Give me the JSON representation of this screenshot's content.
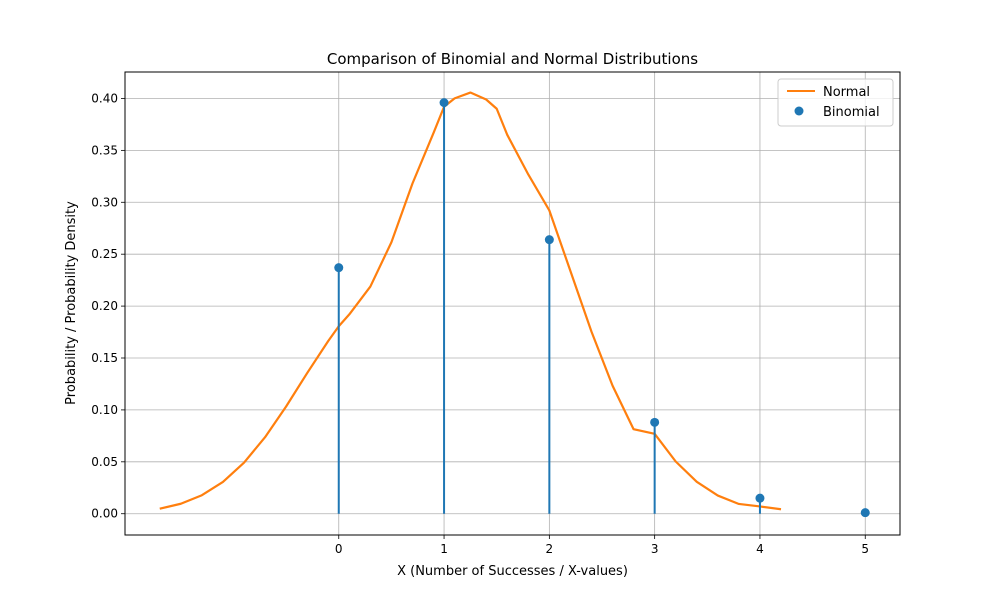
{
  "chart_data": {
    "type": "line",
    "title": "Comparison of Binomial and Normal Distributions",
    "xlabel": "X (Number of Successes / X-values)",
    "ylabel": "Probability / Probability Density",
    "xlim": [
      -2.03,
      5.33
    ],
    "ylim": [
      -0.0205,
      0.4255
    ],
    "x_ticks": [
      0,
      1,
      2,
      3,
      4,
      5
    ],
    "y_ticks": [
      0.0,
      0.05,
      0.1,
      0.15,
      0.2,
      0.25,
      0.3,
      0.35,
      0.4
    ],
    "x_tick_labels": [
      "0",
      "1",
      "2",
      "3",
      "4",
      "5"
    ],
    "y_tick_labels": [
      "0.00",
      "0.05",
      "0.10",
      "0.15",
      "0.20",
      "0.25",
      "0.30",
      "0.35",
      "0.40"
    ],
    "grid": true,
    "legend_position": "upper right",
    "series": [
      {
        "name": "Normal",
        "kind": "curve",
        "color": "#ff7f0e",
        "x": [
          -1.7,
          -1.5,
          -1.3,
          -1.1,
          -0.9,
          -0.7,
          -0.5,
          -0.3,
          -0.1,
          0.0,
          0.1,
          0.3,
          0.5,
          0.7,
          0.9,
          1.0,
          1.1,
          1.25,
          1.4,
          1.5,
          1.6,
          1.8,
          2.0,
          2.2,
          2.4,
          2.6,
          2.8,
          3.0,
          3.2,
          3.4,
          3.6,
          3.8,
          4.0,
          4.2
        ],
        "y": [
          0.0048,
          0.0096,
          0.0178,
          0.0306,
          0.0492,
          0.0737,
          0.1033,
          0.1355,
          0.1664,
          0.1806,
          0.192,
          0.2188,
          0.2615,
          0.3181,
          0.3668,
          0.392,
          0.4001,
          0.4057,
          0.399,
          0.3901,
          0.365,
          0.3268,
          0.2921,
          0.2338,
          0.1754,
          0.1234,
          0.0814,
          0.077,
          0.0503,
          0.0307,
          0.0175,
          0.0094,
          0.007,
          0.0043
        ]
      },
      {
        "name": "Binomial",
        "kind": "stem",
        "color": "#1f77b4",
        "x": [
          0,
          1,
          2,
          3,
          4,
          5
        ],
        "y": [
          0.237,
          0.396,
          0.264,
          0.088,
          0.015,
          0.001
        ]
      }
    ]
  }
}
